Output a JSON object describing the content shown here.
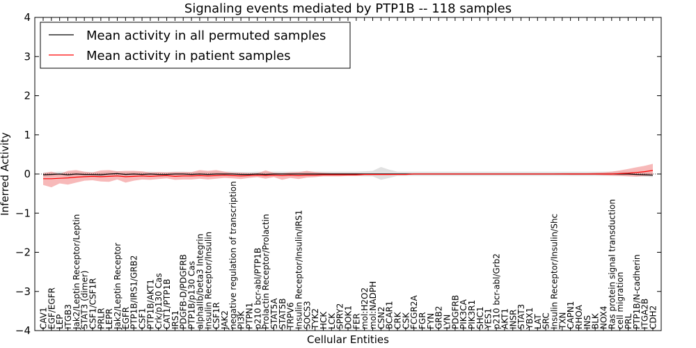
{
  "chart_data": {
    "type": "line",
    "title": "Signaling events mediated by PTP1B -- 118 samples",
    "xlabel": "Cellular Entities",
    "ylabel": "Inferred Activity",
    "ylim": [
      -4,
      4
    ],
    "yticks": [
      -4,
      -3,
      -2,
      -1,
      0,
      1,
      2,
      3,
      4
    ],
    "ytick_labels": [
      "−4",
      "−3",
      "−2",
      "−1",
      "0",
      "1",
      "2",
      "3",
      "4"
    ],
    "grid": false,
    "legend_position": "top-left",
    "categories": [
      "CAV1",
      "EGF/EGFR",
      "LEP",
      "ITGB3",
      "Jak2/Leptin Receptor/Leptin",
      "STAT3 (dimer)",
      "CSF1/CSF1R",
      "PRLR",
      "LEPR",
      "Jak2/Leptin Receptor",
      "EGFR",
      "PTP1B/IRS1/GRB2",
      "CSF1",
      "PTP1B/AKT1",
      "Crk/p130 Cas",
      "CAT1/PTP1B",
      "IRS1",
      "PDGFB-D/PDGFRB",
      "PTP1B/p130 Cas",
      "alphaIIb/beta3 Integrin",
      "Insulin Receptor/Insulin",
      "CSF1R",
      "JAK2",
      "negative regulation of transcription",
      "PI3K",
      "PTPN1",
      "p210 bcr-abl/PTP1B",
      "Prolactin Receptor/Prolactin",
      "STAT5A",
      "STAT5B",
      "TRPV6",
      "Insulin Receptor/Insulin/IRS1",
      "SOCS3",
      "TYK2",
      "HCK",
      "LCK",
      "SPRY2",
      "DOK1",
      "FER",
      "mol:H2O2",
      "mol:NADPH",
      "CSN2",
      "BCAR1",
      "CRK",
      "CSK",
      "FCGR2A",
      "FGR",
      "FYN",
      "GRB2",
      "LYN",
      "PDGFRB",
      "PIK3CA",
      "PIK3R1",
      "SHC1",
      "YES1",
      "p210 bcr-abl/Grb2",
      "AKT1",
      "INSR",
      "STAT3",
      "YBX1",
      "LAT",
      "SRC",
      "Insulin Receptor/Insulin/Shc",
      "TXN",
      "CAPN1",
      "RHOA",
      "INS",
      "BLK",
      "NOX4",
      "Ras protein signal transduction",
      "cell migration",
      "PRL",
      "PTP1B/N-cadherin",
      "ITGA2B",
      "CDH2"
    ],
    "series": [
      {
        "name": "Mean activity in all permuted samples",
        "color": "#000000",
        "band_color": "#c8c8c8",
        "values": [
          -0.02,
          -0.01,
          0,
          -0.02,
          0,
          -0.01,
          -0.01,
          -0.02,
          0,
          0.01,
          -0.01,
          0,
          -0.01,
          0,
          -0.01,
          -0.01,
          0,
          0,
          -0.01,
          0,
          -0.01,
          0,
          0,
          0,
          -0.01,
          -0.01,
          0,
          -0.01,
          0,
          0,
          0,
          0,
          0,
          0,
          0,
          0,
          0,
          0,
          0,
          0,
          0,
          0,
          0,
          0,
          0,
          0,
          0,
          0,
          0,
          0,
          0,
          0,
          0,
          0,
          0,
          0,
          0,
          0,
          0,
          0,
          0,
          0,
          0,
          0,
          0,
          0,
          0,
          0,
          0,
          0,
          0,
          0,
          -0.01,
          -0.02,
          -0.03
        ],
        "lower": [
          -0.07,
          -0.06,
          -0.05,
          -0.07,
          -0.05,
          -0.06,
          -0.06,
          -0.07,
          -0.05,
          -0.04,
          -0.06,
          -0.05,
          -0.06,
          -0.05,
          -0.06,
          -0.06,
          -0.05,
          -0.05,
          -0.06,
          -0.05,
          -0.06,
          -0.05,
          -0.05,
          -0.05,
          -0.06,
          -0.06,
          -0.05,
          -0.06,
          -0.05,
          -0.05,
          -0.05,
          -0.05,
          -0.05,
          -0.05,
          -0.05,
          -0.05,
          -0.05,
          -0.05,
          -0.05,
          -0.06,
          -0.06,
          -0.15,
          -0.1,
          -0.05,
          -0.05,
          -0.05,
          -0.05,
          -0.05,
          -0.05,
          -0.05,
          -0.05,
          -0.05,
          -0.05,
          -0.05,
          -0.05,
          -0.05,
          -0.05,
          -0.05,
          -0.05,
          -0.05,
          -0.05,
          -0.05,
          -0.05,
          -0.05,
          -0.05,
          -0.05,
          -0.05,
          -0.05,
          -0.05,
          -0.05,
          -0.05,
          -0.05,
          -0.06,
          -0.07,
          -0.08
        ],
        "upper": [
          0.04,
          0.05,
          0.06,
          0.05,
          0.06,
          0.05,
          0.05,
          0.04,
          0.06,
          0.07,
          0.05,
          0.06,
          0.05,
          0.06,
          0.05,
          0.05,
          0.06,
          0.06,
          0.05,
          0.06,
          0.05,
          0.06,
          0.06,
          0.06,
          0.05,
          0.05,
          0.06,
          0.05,
          0.06,
          0.06,
          0.06,
          0.06,
          0.06,
          0.06,
          0.06,
          0.06,
          0.06,
          0.06,
          0.06,
          0.07,
          0.08,
          0.18,
          0.11,
          0.06,
          0.06,
          0.06,
          0.06,
          0.06,
          0.06,
          0.06,
          0.06,
          0.06,
          0.06,
          0.06,
          0.06,
          0.06,
          0.06,
          0.06,
          0.06,
          0.06,
          0.06,
          0.06,
          0.06,
          0.06,
          0.06,
          0.06,
          0.06,
          0.06,
          0.06,
          0.06,
          0.06,
          0.06,
          0.05,
          0.04,
          0.03
        ]
      },
      {
        "name": "Mean activity in patient samples",
        "color": "#ff0000",
        "band_color": "#f28a8a",
        "values": [
          -0.12,
          -0.12,
          -0.11,
          -0.1,
          -0.08,
          -0.07,
          -0.06,
          -0.07,
          -0.06,
          -0.05,
          -0.07,
          -0.06,
          -0.05,
          -0.06,
          -0.05,
          -0.04,
          -0.06,
          -0.05,
          -0.05,
          -0.04,
          -0.05,
          -0.04,
          -0.03,
          -0.04,
          -0.05,
          -0.04,
          -0.03,
          -0.04,
          -0.03,
          -0.04,
          -0.03,
          -0.04,
          -0.03,
          -0.03,
          -0.02,
          -0.02,
          -0.02,
          -0.02,
          -0.02,
          -0.01,
          -0.01,
          -0.01,
          -0.01,
          -0.01,
          -0.01,
          0,
          0,
          0,
          0,
          0,
          0,
          0,
          0,
          0,
          0,
          0,
          0,
          0,
          0,
          0,
          0,
          0,
          0,
          0,
          0,
          0,
          0,
          0,
          0,
          0,
          0.01,
          0.02,
          0.04,
          0.06,
          0.09
        ],
        "lower": [
          -0.28,
          -0.34,
          -0.24,
          -0.27,
          -0.22,
          -0.17,
          -0.16,
          -0.19,
          -0.2,
          -0.14,
          -0.22,
          -0.17,
          -0.14,
          -0.15,
          -0.13,
          -0.11,
          -0.15,
          -0.14,
          -0.14,
          -0.12,
          -0.14,
          -0.12,
          -0.1,
          -0.11,
          -0.13,
          -0.1,
          -0.08,
          -0.12,
          -0.08,
          -0.15,
          -0.1,
          -0.13,
          -0.09,
          -0.08,
          -0.06,
          -0.06,
          -0.06,
          -0.05,
          -0.05,
          -0.03,
          -0.03,
          -0.03,
          -0.03,
          -0.02,
          -0.02,
          -0.01,
          -0.01,
          -0.01,
          -0.01,
          -0.01,
          -0.01,
          -0.01,
          -0.01,
          -0.01,
          -0.01,
          -0.01,
          -0.01,
          -0.01,
          -0.01,
          -0.01,
          -0.01,
          -0.01,
          -0.01,
          -0.01,
          -0.02,
          -0.02,
          -0.02,
          -0.02,
          -0.03,
          -0.04,
          -0.05,
          -0.06,
          -0.07,
          -0.05,
          -0.04
        ],
        "upper": [
          0.02,
          0.06,
          0.0,
          0.08,
          0.1,
          0.06,
          0.04,
          0.09,
          0.1,
          0.07,
          0.08,
          0.08,
          0.07,
          0.04,
          0.05,
          0.04,
          0.05,
          0.05,
          0.05,
          0.1,
          0.08,
          0.1,
          0.06,
          0.03,
          0.03,
          0.02,
          0.02,
          0.09,
          0.03,
          0.02,
          0.04,
          0.05,
          0.08,
          0.05,
          0.03,
          0.02,
          0.02,
          0.02,
          0.02,
          0.01,
          0.01,
          0.01,
          0.01,
          0.01,
          0.01,
          0.01,
          0.01,
          0.01,
          0.01,
          0.01,
          0.01,
          0.01,
          0.01,
          0.01,
          0.01,
          0.01,
          0.01,
          0.01,
          0.01,
          0.01,
          0.01,
          0.01,
          0.01,
          0.02,
          0.02,
          0.02,
          0.02,
          0.03,
          0.04,
          0.06,
          0.09,
          0.13,
          0.17,
          0.21,
          0.26
        ]
      }
    ]
  }
}
